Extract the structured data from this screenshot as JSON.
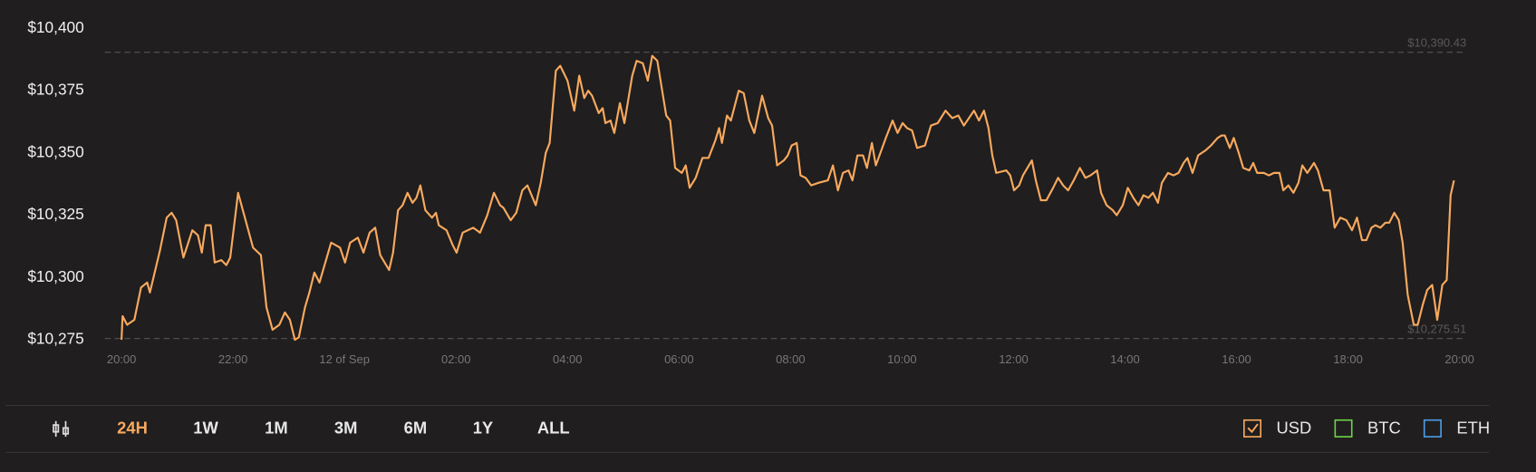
{
  "chart_data": {
    "type": "line",
    "xlim": [
      0,
      24
    ],
    "xticks": [
      {
        "value": 0,
        "label": "20:00"
      },
      {
        "value": 2,
        "label": "22:00"
      },
      {
        "value": 4,
        "label": "12 of Sep"
      },
      {
        "value": 6,
        "label": "02:00"
      },
      {
        "value": 8,
        "label": "04:00"
      },
      {
        "value": 10,
        "label": "06:00"
      },
      {
        "value": 12,
        "label": "08:00"
      },
      {
        "value": 14,
        "label": "10:00"
      },
      {
        "value": 16,
        "label": "12:00"
      },
      {
        "value": 18,
        "label": "14:00"
      },
      {
        "value": 20,
        "label": "16:00"
      },
      {
        "value": 22,
        "label": "18:00"
      },
      {
        "value": 24,
        "label": "20:00"
      }
    ],
    "ylim": [
      10275,
      10400
    ],
    "yticks": [
      {
        "value": 10400,
        "label": "$10,400"
      },
      {
        "value": 10375,
        "label": "$10,375"
      },
      {
        "value": 10350,
        "label": "$10,350"
      },
      {
        "value": 10325,
        "label": "$10,325"
      },
      {
        "value": 10300,
        "label": "$10,300"
      },
      {
        "value": 10275,
        "label": "$10,275"
      }
    ],
    "reference_lines": [
      {
        "value": 10390.43,
        "label": "$10,390.43"
      },
      {
        "value": 10275.51,
        "label": "$10,275.51"
      }
    ],
    "series": [
      {
        "name": "USD",
        "color": "#f8a95e",
        "checked": true,
        "x": [
          0,
          0.02,
          0.1,
          0.23,
          0.35,
          0.46,
          0.51,
          0.69,
          0.81,
          0.9,
          0.98,
          1.11,
          1.27,
          1.37,
          1.44,
          1.51,
          1.6,
          1.67,
          1.79,
          1.88,
          1.95,
          2.09,
          2.36,
          2.5,
          2.6,
          2.71,
          2.83,
          2.93,
          3.02,
          3.11,
          3.18,
          3.29,
          3.37,
          3.46,
          3.55,
          3.76,
          3.92,
          4.01,
          4.1,
          4.24,
          4.34,
          4.45,
          4.55,
          4.64,
          4.8,
          4.87,
          4.96,
          5.04,
          5.13,
          5.22,
          5.29,
          5.36,
          5.45,
          5.57,
          5.64,
          5.69,
          5.83,
          5.94,
          6.01,
          6.12,
          6.31,
          6.43,
          6.56,
          6.68,
          6.79,
          6.85,
          6.98,
          7.08,
          7.19,
          7.28,
          7.43,
          7.52,
          7.61,
          7.68,
          7.79,
          7.87,
          8.0,
          8.12,
          8.21,
          8.3,
          8.37,
          8.44,
          8.56,
          8.63,
          8.68,
          8.77,
          8.84,
          8.94,
          9.02,
          9.16,
          9.24,
          9.35,
          9.44,
          9.52,
          9.61,
          9.77,
          9.84,
          9.93,
          10.05,
          10.12,
          10.19,
          10.3,
          10.42,
          10.53,
          10.65,
          10.72,
          10.77,
          10.86,
          10.93,
          11.07,
          11.16,
          11.26,
          11.35,
          11.49,
          11.6,
          11.67,
          11.76,
          11.88,
          11.95,
          12.02,
          12.11,
          12.18,
          12.27,
          12.37,
          12.5,
          12.67,
          12.76,
          12.85,
          12.94,
          13.04,
          13.11,
          13.2,
          13.3,
          13.37,
          13.46,
          13.53,
          13.71,
          13.83,
          13.92,
          14.01,
          14.09,
          14.18,
          14.27,
          14.41,
          14.52,
          14.64,
          14.78,
          14.9,
          15.01,
          15.11,
          15.29,
          15.38,
          15.47,
          15.55,
          15.62,
          15.69,
          15.87,
          15.94,
          16.01,
          16.1,
          16.17,
          16.33,
          16.4,
          16.49,
          16.59,
          16.71,
          16.8,
          16.89,
          16.98,
          17.08,
          17.19,
          17.29,
          17.38,
          17.5,
          17.57,
          17.67,
          17.78,
          17.85,
          17.96,
          18.05,
          18.15,
          18.24,
          18.33,
          18.42,
          18.5,
          18.59,
          18.66,
          18.77,
          18.87,
          18.96,
          19.05,
          19.12,
          19.21,
          19.31,
          19.44,
          19.54,
          19.66,
          19.73,
          19.79,
          19.88,
          19.95,
          20.04,
          20.12,
          20.23,
          20.3,
          20.37,
          20.49,
          20.58,
          20.67,
          20.77,
          20.84,
          20.93,
          21.02,
          21.11,
          21.18,
          21.27,
          21.39,
          21.46,
          21.56,
          21.67,
          21.76,
          21.86,
          21.97,
          22.07,
          22.16,
          22.25,
          22.33,
          22.42,
          22.49,
          22.58,
          22.67,
          22.74,
          22.83,
          22.91,
          22.98,
          23.07,
          23.18,
          23.25,
          23.34,
          23.42,
          23.51,
          23.6,
          23.69,
          23.77,
          23.84,
          23.9
        ],
        "values": [
          10275,
          10284.5,
          10281,
          10283,
          10296,
          10298,
          10294,
          10311,
          10324,
          10326,
          10323,
          10308,
          10319,
          10317,
          10310,
          10321,
          10321,
          10306,
          10307,
          10305,
          10308,
          10334,
          10312,
          10309,
          10288,
          10279,
          10281,
          10286,
          10283,
          10275,
          10276,
          10288,
          10294,
          10302,
          10298,
          10314,
          10312,
          10306,
          10314,
          10316,
          10310,
          10318,
          10320,
          10309,
          10303,
          10310,
          10327,
          10329,
          10334,
          10330,
          10332,
          10337,
          10327,
          10324,
          10326,
          10321,
          10319,
          10313,
          10310,
          10318,
          10320,
          10318,
          10325,
          10334,
          10329,
          10328,
          10323,
          10326,
          10335,
          10337,
          10329,
          10338,
          10350,
          10354,
          10383,
          10385,
          10379,
          10367,
          10381,
          10372,
          10375,
          10373,
          10366,
          10368,
          10362,
          10363,
          10358,
          10370,
          10362,
          10381,
          10387,
          10386,
          10379,
          10389,
          10387,
          10365,
          10363,
          10344,
          10342,
          10345,
          10336,
          10340,
          10348,
          10348,
          10355,
          10360,
          10354,
          10365,
          10363,
          10375,
          10374,
          10363,
          10358,
          10373,
          10364,
          10361,
          10345,
          10347,
          10349,
          10353,
          10354,
          10341,
          10340,
          10337,
          10338,
          10339,
          10345,
          10335,
          10342,
          10343,
          10339,
          10349,
          10349,
          10344,
          10354,
          10345,
          10356,
          10363,
          10358,
          10362,
          10360,
          10359,
          10352,
          10353,
          10361,
          10362,
          10367,
          10364,
          10365,
          10361,
          10367,
          10363,
          10367,
          10360,
          10349,
          10342,
          10343,
          10341,
          10335,
          10337,
          10341,
          10347,
          10339,
          10331,
          10331,
          10336,
          10340,
          10337,
          10335,
          10339,
          10344,
          10340,
          10341,
          10343,
          10334,
          10329,
          10327,
          10325,
          10329,
          10336,
          10332,
          10329,
          10333,
          10332,
          10334,
          10330,
          10338,
          10342,
          10341,
          10342,
          10346,
          10348,
          10342,
          10349,
          10351,
          10353,
          10356,
          10357,
          10357,
          10352,
          10356,
          10350,
          10344,
          10343,
          10346,
          10342,
          10342,
          10341,
          10342,
          10342,
          10335,
          10337,
          10334,
          10338,
          10345,
          10342,
          10346,
          10343,
          10335,
          10335,
          10320,
          10324,
          10323,
          10319,
          10324,
          10315,
          10315,
          10320,
          10321,
          10320,
          10322,
          10322,
          10326,
          10323,
          10314,
          10293,
          10281,
          10281,
          10289,
          10295,
          10297,
          10283,
          10297,
          10299,
          10333,
          10339
        ]
      }
    ],
    "other_series": [
      {
        "name": "BTC",
        "color": "#6cd24a",
        "checked": false
      },
      {
        "name": "ETH",
        "color": "#4d9de8",
        "checked": false
      }
    ],
    "ranges": [
      "24H",
      "1W",
      "1M",
      "3M",
      "6M",
      "1Y",
      "ALL"
    ],
    "selected_range": 0
  }
}
